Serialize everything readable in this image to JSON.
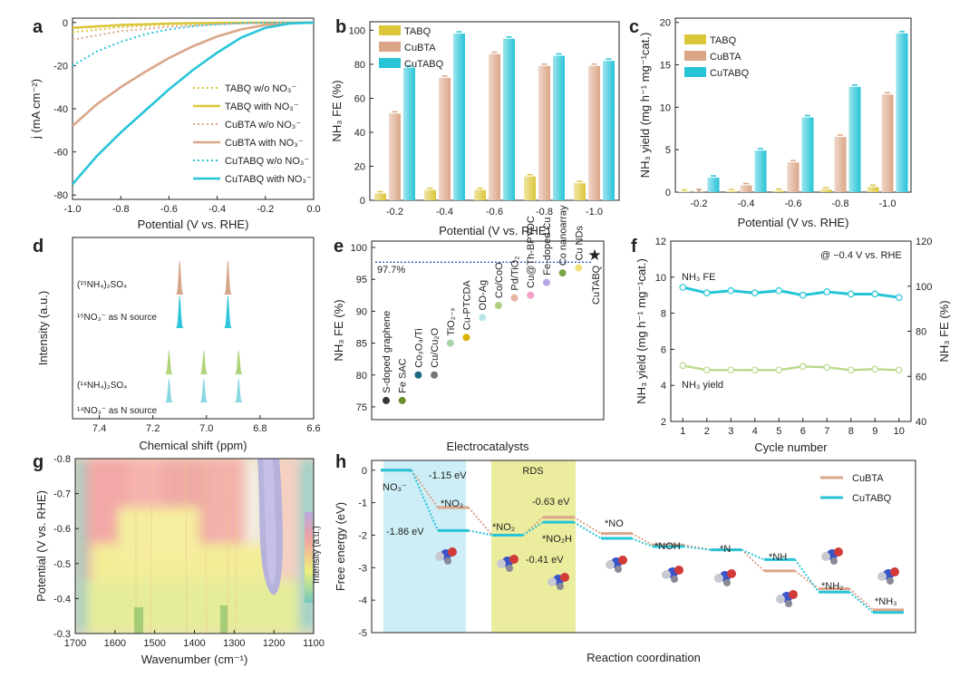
{
  "colors": {
    "tabq": "#dcc63a",
    "cubta": "#dba688",
    "cutabq": "#27c4d8",
    "nmr15": "#d29c7c",
    "nmr15b": "#17bfd6",
    "nmr14": "#a7cf6a",
    "nmr14b": "#7ed3de"
  },
  "chart_data": [
    {
      "id": "a",
      "type": "line",
      "panel_label": "a",
      "xlabel": "Potential (V vs. RHE)",
      "ylabel": "j (mA cm⁻²)",
      "xlim": [
        -1.0,
        0.0
      ],
      "ylim": [
        -82,
        2
      ],
      "xticks": [
        "-1.0",
        "-0.8",
        "-0.6",
        "-0.4",
        "-0.2",
        "0.0"
      ],
      "yticks": [
        "0",
        "-20",
        "-40",
        "-60",
        "-80"
      ],
      "series": [
        {
          "name": "TABQ w/o NO₃⁻",
          "dashed": true,
          "color": "tabq",
          "x": [
            -1.0,
            -0.8,
            -0.6,
            -0.4,
            -0.2,
            0.0
          ],
          "y": [
            -4.5,
            -2.2,
            -1.0,
            -0.4,
            -0.1,
            0
          ]
        },
        {
          "name": "TABQ with NO₃⁻",
          "dashed": false,
          "color": "tabq",
          "x": [
            -1.0,
            -0.8,
            -0.6,
            -0.4,
            -0.2,
            0.0
          ],
          "y": [
            -2.5,
            -1.2,
            -0.5,
            -0.2,
            -0.05,
            0
          ]
        },
        {
          "name": "CuBTA w/o NO₃⁻",
          "dashed": true,
          "color": "cubta",
          "x": [
            -1.0,
            -0.8,
            -0.6,
            -0.4,
            -0.2,
            0.0
          ],
          "y": [
            -8,
            -4,
            -2,
            -0.8,
            -0.2,
            0
          ]
        },
        {
          "name": "CuBTA with NO₃⁻",
          "dashed": false,
          "color": "cubta",
          "x": [
            -1.0,
            -0.9,
            -0.8,
            -0.7,
            -0.6,
            -0.5,
            -0.4,
            -0.3,
            -0.2,
            -0.1,
            0.0
          ],
          "y": [
            -48,
            -38,
            -30,
            -23,
            -16.5,
            -11,
            -6.5,
            -3.2,
            -1.2,
            -0.3,
            0
          ]
        },
        {
          "name": "CuTABQ w/o NO₃⁻",
          "dashed": true,
          "color": "cutabq",
          "x": [
            -1.0,
            -0.9,
            -0.8,
            -0.7,
            -0.6,
            -0.5,
            -0.4,
            -0.3,
            -0.2,
            0.0
          ],
          "y": [
            -20,
            -13.5,
            -9,
            -5.5,
            -3.2,
            -1.8,
            -0.9,
            -0.4,
            -0.1,
            0
          ]
        },
        {
          "name": "CuTABQ with NO₃⁻",
          "dashed": false,
          "color": "cutabq",
          "x": [
            -1.0,
            -0.9,
            -0.8,
            -0.7,
            -0.6,
            -0.5,
            -0.4,
            -0.3,
            -0.2,
            -0.1,
            0.0
          ],
          "y": [
            -75,
            -62,
            -51,
            -41,
            -31,
            -22,
            -14,
            -7,
            -2.5,
            -0.5,
            0
          ]
        }
      ]
    },
    {
      "id": "b",
      "type": "bar",
      "panel_label": "b",
      "xlabel": "Potential (V vs. RHE)",
      "ylabel": "NH₃ FE (%)",
      "ylim": [
        0,
        105
      ],
      "yticks": [
        "0",
        "20",
        "40",
        "60",
        "80",
        "100"
      ],
      "categories": [
        "-0.2",
        "-0.4",
        "-0.6",
        "-0.8",
        "-1.0"
      ],
      "series": [
        {
          "name": "TABQ",
          "color": "tabq",
          "values": [
            4,
            6,
            6,
            14,
            10
          ]
        },
        {
          "name": "CuBTA",
          "color": "cubta",
          "values": [
            51,
            72,
            86,
            79,
            79
          ]
        },
        {
          "name": "CuTABQ",
          "color": "cutabq",
          "values": [
            78,
            98,
            95,
            85,
            82
          ]
        }
      ]
    },
    {
      "id": "c",
      "type": "bar",
      "panel_label": "c",
      "xlabel": "Potential (V vs. RHE)",
      "ylabel": "NH₃ yield (mg h⁻¹ mg⁻¹cat.)",
      "ylim": [
        0,
        20.5
      ],
      "yticks": [
        "0",
        "5",
        "10",
        "15",
        "20"
      ],
      "categories": [
        "-0.2",
        "-0.4",
        "-0.6",
        "-0.8",
        "-1.0"
      ],
      "series": [
        {
          "name": "TABQ",
          "color": "tabq",
          "values": [
            0.05,
            0.1,
            0.15,
            0.3,
            0.6
          ]
        },
        {
          "name": "CuBTA",
          "color": "cubta",
          "values": [
            0.1,
            0.8,
            3.5,
            6.5,
            11.5
          ]
        },
        {
          "name": "CuTABQ",
          "color": "cutabq",
          "values": [
            1.7,
            4.9,
            8.8,
            12.4,
            18.7
          ]
        }
      ]
    },
    {
      "id": "d",
      "type": "line",
      "panel_label": "d",
      "xlabel": "Chemical shift (ppm)",
      "ylabel": "Intensity (a.u.)",
      "xlim": [
        7.5,
        6.6
      ],
      "xticks": [
        "7.4",
        "7.2",
        "7.0",
        "6.8",
        "6.6"
      ],
      "traces": [
        {
          "label": "(¹⁵NH₄)₂SO₄",
          "color": "nmr15",
          "peaks": [
            7.1,
            6.92
          ]
        },
        {
          "label": "¹⁵NO₃⁻ as N source",
          "color": "nmr15b",
          "peaks": [
            7.1,
            6.92
          ]
        },
        {
          "label": "(¹⁴NH₄)₂SO₄",
          "color": "nmr14",
          "peaks": [
            7.14,
            7.01,
            6.88
          ]
        },
        {
          "label": "¹⁴NO₃⁻ as N source",
          "color": "nmr14b",
          "peaks": [
            7.14,
            7.01,
            6.88
          ]
        }
      ]
    },
    {
      "id": "e",
      "type": "scatter",
      "panel_label": "e",
      "xlabel": "Electrocatalysts",
      "ylabel": "NH₃ FE (%)",
      "ylim": [
        73,
        101
      ],
      "yticks": [
        "75",
        "80",
        "85",
        "90",
        "95",
        "100"
      ],
      "ref_label": "97.7%",
      "ref_value": 97.7,
      "points": [
        {
          "name": "S-doped graphene",
          "value": 76.0,
          "color": "#333333"
        },
        {
          "name": "Fe SAC",
          "value": 76.0,
          "color": "#6a8f2a"
        },
        {
          "name": "Co₃O₄/Ti",
          "value": 80.0,
          "color": "#1d6a82"
        },
        {
          "name": "Cu/Cu₂O",
          "value": 80.0,
          "color": "#777777"
        },
        {
          "name": "TiO₂₋ₓ",
          "value": 85.0,
          "color": "#a8d2a8"
        },
        {
          "name": "Cu-PTCDA",
          "value": 85.9,
          "color": "#d9b300"
        },
        {
          "name": "OD-Ag",
          "value": 89.0,
          "color": "#b9e6ee"
        },
        {
          "name": "Co/CoO",
          "value": 90.9,
          "color": "#b0ce82"
        },
        {
          "name": "Pd/TiO₂",
          "value": 92.1,
          "color": "#e8b4a4"
        },
        {
          "name": "Cu@Th-BPYDC",
          "value": 92.5,
          "color": "#f2a0c6"
        },
        {
          "name": "Fe-doped Cu",
          "value": 94.5,
          "color": "#b8a6e6"
        },
        {
          "name": "Co nanoarray",
          "value": 96.0,
          "color": "#7ba34a"
        },
        {
          "name": "Cu NDs",
          "value": 96.8,
          "color": "#f0e07a"
        },
        {
          "name": "CuTABQ",
          "value": 98.9,
          "color": "#2ec4e0"
        }
      ]
    },
    {
      "id": "f",
      "type": "line",
      "panel_label": "f",
      "xlabel": "Cycle number",
      "ylabel": "NH₃ yield (mg h⁻¹ mg⁻¹cat.)",
      "ylabel_right": "NH₃ FE (%)",
      "annotation": "@ −0.4 V vs. RHE",
      "xlim": [
        0.5,
        10.5
      ],
      "ylim": [
        2,
        12
      ],
      "ylim_right": [
        40,
        120
      ],
      "xticks": [
        "1",
        "2",
        "3",
        "4",
        "5",
        "6",
        "7",
        "8",
        "9",
        "10"
      ],
      "yticks": [
        "2",
        "4",
        "6",
        "8",
        "10",
        "12"
      ],
      "yticks_right": [
        "40",
        "60",
        "80",
        "100",
        "120"
      ],
      "series": [
        {
          "name": "NH₃ FE",
          "axis": "right",
          "color": "#27c4d8",
          "x": [
            1,
            2,
            3,
            4,
            5,
            6,
            7,
            8,
            9,
            10
          ],
          "y": [
            99.5,
            97,
            98,
            97,
            98,
            96,
            97.5,
            96.5,
            96.5,
            95
          ]
        },
        {
          "name": "NH₃ yield",
          "axis": "left",
          "color": "#b9d98a",
          "x": [
            1,
            2,
            3,
            4,
            5,
            6,
            7,
            8,
            9,
            10
          ],
          "y": [
            5.1,
            4.85,
            4.85,
            4.85,
            4.85,
            5.05,
            5.0,
            4.85,
            4.9,
            4.85
          ]
        }
      ]
    },
    {
      "id": "g",
      "type": "heatmap",
      "panel_label": "g",
      "xlabel": "Wavenumber (cm⁻¹)",
      "ylabel": "Potential (V vs. RHE)",
      "colorbar_label": "Intensity (a.u.)",
      "xlim": [
        1700,
        1100
      ],
      "ylim": [
        -0.3,
        -0.8
      ],
      "xticks": [
        "1700",
        "1600",
        "1500",
        "1400",
        "1300",
        "1200",
        "1100"
      ],
      "yticks": [
        "-0.8",
        "-0.7",
        "-0.6",
        "-0.5",
        "-0.4",
        "-0.3"
      ]
    },
    {
      "id": "h",
      "type": "line",
      "panel_label": "h",
      "xlabel": "Reaction coordination",
      "ylabel": "Free energy (eV)",
      "ylim": [
        -5,
        0.3
      ],
      "yticks": [
        "0",
        "-1",
        "-2",
        "-3",
        "-4",
        "-5"
      ],
      "region_label": "RDS",
      "steps": [
        "NO₃⁻",
        "*NO₃",
        "*NO₂",
        "*NO₂H",
        "*NO",
        "*NOH",
        "*N",
        "*NH",
        "*NH₂",
        "*NH₃"
      ],
      "series": [
        {
          "name": "CuBTA",
          "color": "#dca488",
          "values": [
            0,
            -1.15,
            -2.0,
            -1.45,
            -1.95,
            -2.3,
            -2.45,
            -3.1,
            -3.65,
            -4.3
          ]
        },
        {
          "name": "CuTABQ",
          "color": "#27c4d8",
          "values": [
            0,
            -1.86,
            -2.0,
            -1.6,
            -2.1,
            -2.35,
            -2.45,
            -2.75,
            -3.75,
            -4.38
          ]
        }
      ],
      "annotations": [
        "-1.15 eV",
        "-1.86 eV",
        "-0.63 eV",
        "-0.41 eV"
      ]
    }
  ]
}
